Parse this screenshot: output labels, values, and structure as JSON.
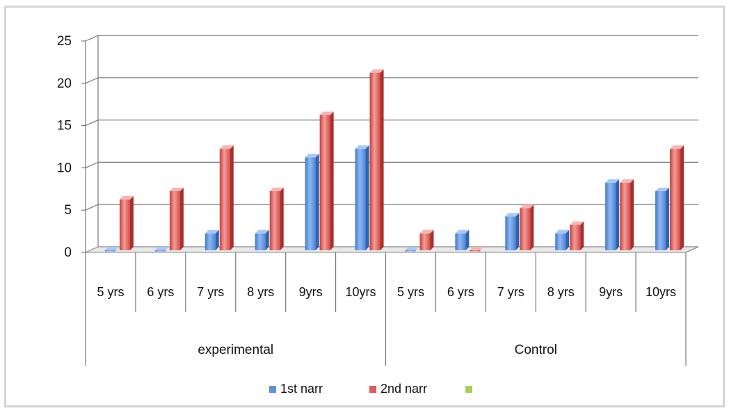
{
  "chart_data": {
    "type": "bar",
    "style": "3d-clustered-column",
    "ylim": [
      0,
      25
    ],
    "yticks": [
      0,
      5,
      10,
      15,
      20,
      25
    ],
    "grid": true,
    "legend_position": "bottom",
    "groups": [
      {
        "name": "experimental",
        "categories": [
          "5 yrs",
          "6 yrs",
          "7 yrs",
          "8 yrs",
          "9yrs",
          "10yrs"
        ]
      },
      {
        "name": "Control",
        "categories": [
          "5 yrs",
          "6 yrs",
          "7 yrs",
          "8 yrs",
          "9yrs",
          "10yrs"
        ]
      }
    ],
    "series": [
      {
        "name": "1st narr",
        "color": "#5b93e0",
        "values": [
          0,
          0,
          2,
          2,
          11,
          12,
          0,
          2,
          4,
          2,
          8,
          7
        ]
      },
      {
        "name": "2nd narr",
        "color": "#e05b57",
        "values": [
          6,
          7,
          12,
          7,
          16,
          21,
          2,
          0,
          5,
          3,
          8,
          12
        ]
      },
      {
        "name": "",
        "color": "#a6d05a",
        "values": []
      }
    ]
  }
}
